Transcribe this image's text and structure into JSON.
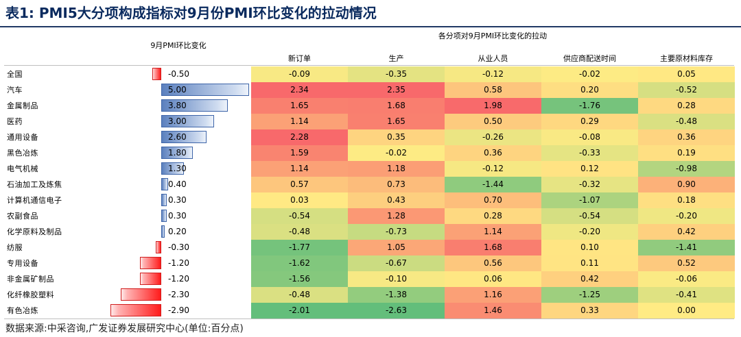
{
  "title": "表1:  PMI5大分项构成指标对9月份PMI环比变化的拉动情况",
  "pmi_header": "9月PMI环比变化",
  "group_header": "各分项对9月PMI环比变化的拉动",
  "columns": [
    "新订单",
    "生产",
    "从业人员",
    "供应商配送时间",
    "主要原材料库存"
  ],
  "rows": [
    {
      "name": "全国",
      "pmi_change": -0.5,
      "pmi_label": "-0.50",
      "cells": [
        "-0.09",
        "-0.35",
        "-0.12",
        "-0.02",
        "0.05"
      ]
    },
    {
      "name": "汽车",
      "pmi_change": 5.0,
      "pmi_label": "5.00",
      "cells": [
        "2.34",
        "2.35",
        "0.58",
        "0.20",
        "-0.52"
      ]
    },
    {
      "name": "金属制品",
      "pmi_change": 3.8,
      "pmi_label": "3.80",
      "cells": [
        "1.65",
        "1.68",
        "1.98",
        "-1.76",
        "0.28"
      ]
    },
    {
      "name": "医药",
      "pmi_change": 3.0,
      "pmi_label": "3.00",
      "cells": [
        "1.14",
        "1.65",
        "0.50",
        "0.29",
        "-0.48"
      ]
    },
    {
      "name": "通用设备",
      "pmi_change": 2.6,
      "pmi_label": "2.60",
      "cells": [
        "2.28",
        "0.35",
        "-0.26",
        "-0.08",
        "0.36"
      ]
    },
    {
      "name": "黑色冶炼",
      "pmi_change": 1.8,
      "pmi_label": "1.80",
      "cells": [
        "1.59",
        "-0.02",
        "0.36",
        "-0.33",
        "0.19"
      ]
    },
    {
      "name": "电气机械",
      "pmi_change": 1.3,
      "pmi_label": "1.30",
      "cells": [
        "1.14",
        "1.18",
        "-0.12",
        "0.12",
        "-0.98"
      ]
    },
    {
      "name": "石油加工及炼焦",
      "pmi_change": 0.4,
      "pmi_label": "0.40",
      "cells": [
        "0.57",
        "0.73",
        "-1.44",
        "-0.32",
        "0.90"
      ]
    },
    {
      "name": "计算机通信电子",
      "pmi_change": 0.3,
      "pmi_label": "0.30",
      "cells": [
        "0.03",
        "0.43",
        "0.70",
        "-1.07",
        "0.18"
      ]
    },
    {
      "name": "农副食品",
      "pmi_change": 0.3,
      "pmi_label": "0.30",
      "cells": [
        "-0.54",
        "1.28",
        "0.28",
        "-0.54",
        "-0.20"
      ]
    },
    {
      "name": "化学原料及制品",
      "pmi_change": 0.2,
      "pmi_label": "0.20",
      "cells": [
        "-0.48",
        "-0.73",
        "1.14",
        "-0.20",
        "0.42"
      ]
    },
    {
      "name": "纺服",
      "pmi_change": -0.3,
      "pmi_label": "-0.30",
      "cells": [
        "-1.77",
        "1.05",
        "1.68",
        "0.10",
        "-1.41"
      ]
    },
    {
      "name": "专用设备",
      "pmi_change": -1.2,
      "pmi_label": "-1.20",
      "cells": [
        "-1.62",
        "-0.67",
        "0.56",
        "0.11",
        "0.52"
      ]
    },
    {
      "name": "非金属矿制品",
      "pmi_change": -1.2,
      "pmi_label": "-1.20",
      "cells": [
        "-1.56",
        "-0.10",
        "0.06",
        "0.42",
        "-0.06"
      ]
    },
    {
      "name": "化纤橡胶塑料",
      "pmi_change": -2.3,
      "pmi_label": "-2.30",
      "cells": [
        "-0.48",
        "-1.38",
        "1.16",
        "-1.25",
        "-0.41"
      ]
    },
    {
      "name": "有色冶炼",
      "pmi_change": -2.9,
      "pmi_label": "-2.90",
      "cells": [
        "-2.01",
        "-2.63",
        "1.46",
        "0.33",
        "0.00"
      ]
    }
  ],
  "source": "数据来源:中采咨询,广发证券发展研究中心(单位:百分点)"
}
